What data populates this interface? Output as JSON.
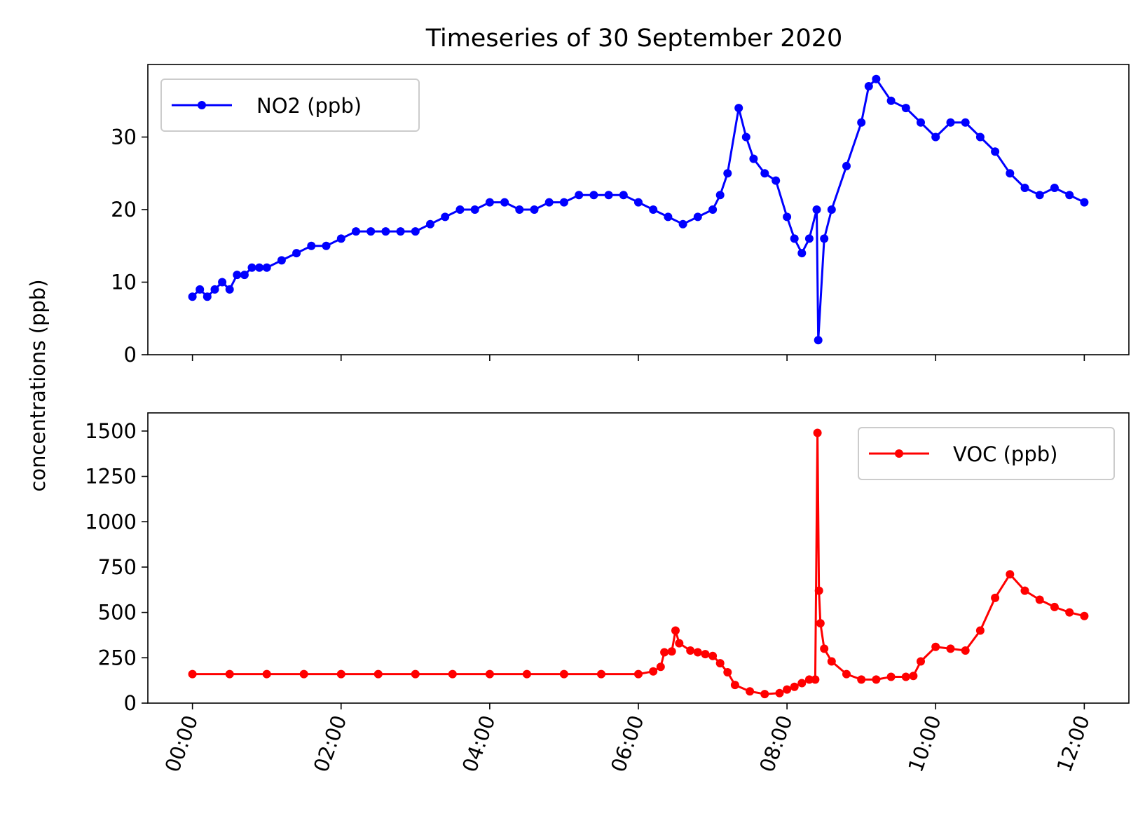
{
  "chart_data": {
    "type": "line",
    "title": "Timeseries of 30 September 2020",
    "ylabel": "concentrations (ppb)",
    "x_ticks": [
      "00:00",
      "02:00",
      "04:00",
      "06:00",
      "08:00",
      "10:00",
      "12:00"
    ],
    "x_tick_hours": [
      0,
      2,
      4,
      6,
      8,
      10,
      12
    ],
    "xlim_hours": [
      -0.6,
      12.6
    ],
    "x_tick_rotation_deg": 70,
    "grid": false,
    "panels": [
      {
        "name": "no2",
        "ylim": [
          0,
          40
        ],
        "yticks": [
          0,
          10,
          20,
          30
        ],
        "legend_position": "upper-left",
        "series": [
          {
            "name": "NO2 (ppb)",
            "color": "#0000ff",
            "x_hours": [
              0.0,
              0.1,
              0.2,
              0.3,
              0.4,
              0.5,
              0.6,
              0.7,
              0.8,
              0.9,
              1.0,
              1.2,
              1.4,
              1.6,
              1.8,
              2.0,
              2.2,
              2.4,
              2.6,
              2.8,
              3.0,
              3.2,
              3.4,
              3.6,
              3.8,
              4.0,
              4.2,
              4.4,
              4.6,
              4.8,
              5.0,
              5.2,
              5.4,
              5.6,
              5.8,
              6.0,
              6.2,
              6.4,
              6.6,
              6.8,
              7.0,
              7.1,
              7.2,
              7.35,
              7.45,
              7.55,
              7.7,
              7.85,
              8.0,
              8.1,
              8.2,
              8.3,
              8.4,
              8.42,
              8.5,
              8.6,
              8.8,
              9.0,
              9.1,
              9.2,
              9.4,
              9.6,
              9.8,
              10.0,
              10.2,
              10.4,
              10.6,
              10.8,
              11.0,
              11.2,
              11.4,
              11.6,
              11.8,
              12.0
            ],
            "values": [
              8,
              9,
              8,
              9,
              10,
              9,
              11,
              11,
              12,
              12,
              12,
              13,
              14,
              15,
              15,
              16,
              17,
              17,
              17,
              17,
              17,
              18,
              19,
              20,
              20,
              21,
              21,
              20,
              20,
              21,
              21,
              22,
              22,
              22,
              22,
              21,
              20,
              19,
              18,
              19,
              20,
              22,
              25,
              34,
              30,
              27,
              25,
              24,
              19,
              16,
              14,
              16,
              20,
              2,
              16,
              20,
              26,
              32,
              37,
              38,
              35,
              34,
              32,
              30,
              32,
              32,
              30,
              28,
              25,
              23,
              22,
              23,
              22,
              21
            ]
          }
        ]
      },
      {
        "name": "voc",
        "ylim": [
          0,
          1600
        ],
        "yticks": [
          0,
          250,
          500,
          750,
          1000,
          1250,
          1500
        ],
        "legend_position": "upper-right",
        "series": [
          {
            "name": "VOC (ppb)",
            "color": "#ff0000",
            "x_hours": [
              0.0,
              0.5,
              1.0,
              1.5,
              2.0,
              2.5,
              3.0,
              3.5,
              4.0,
              4.5,
              5.0,
              5.5,
              6.0,
              6.2,
              6.3,
              6.35,
              6.45,
              6.5,
              6.55,
              6.7,
              6.8,
              6.9,
              7.0,
              7.1,
              7.2,
              7.3,
              7.5,
              7.7,
              7.9,
              8.0,
              8.1,
              8.2,
              8.3,
              8.38,
              8.41,
              8.43,
              8.45,
              8.5,
              8.6,
              8.8,
              9.0,
              9.2,
              9.4,
              9.6,
              9.7,
              9.8,
              10.0,
              10.2,
              10.4,
              10.6,
              10.8,
              11.0,
              11.2,
              11.4,
              11.6,
              11.8,
              12.0
            ],
            "values": [
              160,
              160,
              160,
              160,
              160,
              160,
              160,
              160,
              160,
              160,
              160,
              160,
              160,
              175,
              200,
              280,
              285,
              400,
              330,
              290,
              280,
              270,
              260,
              220,
              170,
              100,
              65,
              50,
              55,
              75,
              90,
              110,
              130,
              130,
              1490,
              620,
              440,
              300,
              230,
              160,
              130,
              130,
              145,
              145,
              150,
              230,
              310,
              300,
              290,
              400,
              580,
              710,
              620,
              570,
              530,
              500,
              480
            ]
          }
        ]
      }
    ]
  }
}
